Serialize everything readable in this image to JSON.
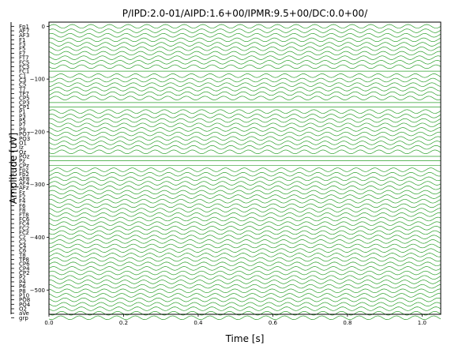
{
  "chart_data": {
    "type": "line",
    "title": "P/IPD:2.0-01/AIPD:1.6+00/IPMR:9.5+00/DC:0.0+00/",
    "xlabel": "Time [s]",
    "ylabel": "Amplitude [uV]",
    "xlim": [
      0.0,
      1.05
    ],
    "ylim": [
      -546,
      8
    ],
    "x_ticks": [
      0.0,
      0.2,
      0.4,
      0.6,
      0.8,
      1.0
    ],
    "x_tick_labels": [
      "0.0",
      "0.2",
      "0.4",
      "0.6",
      "0.8",
      "1.0"
    ],
    "y_ticks": [
      0,
      -100,
      -200,
      -300,
      -400,
      -500
    ],
    "y_tick_labels": [
      "0",
      "−100",
      "−200",
      "−300",
      "−400",
      "−500"
    ],
    "line_color": "#2ca02c",
    "channel_spacing": 8.5,
    "signal": {
      "frequency_hz": 20,
      "amplitude": 3.5
    },
    "channels": [
      "Fp1",
      "AF7",
      "AF3",
      "F1",
      "F3",
      "F5",
      "F7",
      "FT7",
      "FC5",
      "FC3",
      "FC1",
      "C1",
      "C3",
      "C5",
      "T7",
      "TP7",
      "CP5",
      "CP3",
      "CP1",
      "P1",
      "P3",
      "P5",
      "P7",
      "P9",
      "PO7",
      "PO3",
      "O1",
      "Iz",
      "Oz",
      "POz",
      "Pz",
      "CPz",
      "Fpz",
      "Fp2",
      "AF8",
      "AF4",
      "AFz",
      "Fz",
      "F2",
      "F4",
      "F6",
      "F8",
      "FT8",
      "FC6",
      "FC4",
      "FC2",
      "FCz",
      "Cz",
      "C2",
      "C4",
      "C6",
      "T8",
      "TP8",
      "CP6",
      "CP4",
      "CP2",
      "P2",
      "P4",
      "P6",
      "P8",
      "P10",
      "PO8",
      "PO4",
      "O2",
      "aVe",
      "grp"
    ],
    "flat_channels": [
      "FC1",
      "CP3",
      "CP1",
      "POz",
      "Pz",
      "CPz"
    ],
    "grid": false,
    "legend": "none"
  }
}
